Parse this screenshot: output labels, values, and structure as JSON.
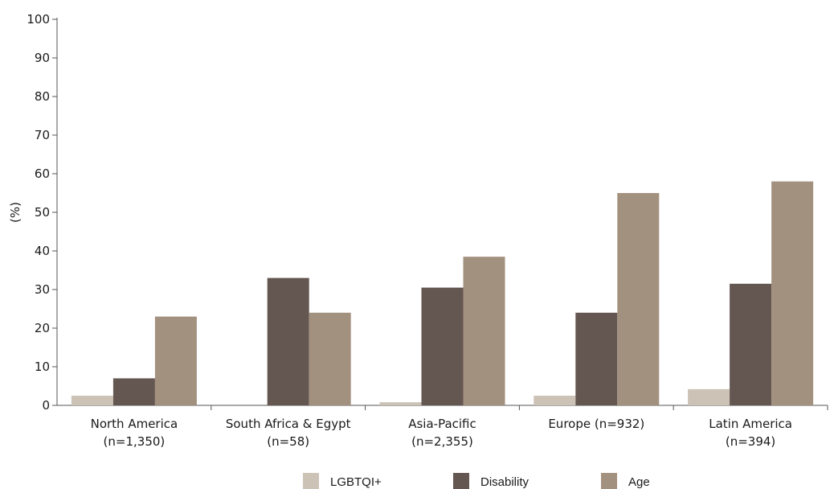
{
  "chart_data": {
    "type": "bar",
    "ylabel": "(%)",
    "ylim": [
      0,
      100
    ],
    "yticks": [
      0,
      10,
      20,
      30,
      40,
      50,
      60,
      70,
      80,
      90,
      100
    ],
    "categories": [
      [
        "North America",
        "(n=1,350)"
      ],
      [
        "South Africa & Egypt",
        "(n=58)"
      ],
      [
        "Asia-Pacific",
        "(n=2,355)"
      ],
      [
        "Europe (n=932)"
      ],
      [
        "Latin America",
        "(n=394)"
      ]
    ],
    "series": [
      {
        "name": "LGBTQI+",
        "color": "#cdc2b6",
        "values": [
          2.5,
          0,
          0.8,
          2.5,
          4.2
        ]
      },
      {
        "name": "Disability",
        "color": "#645650",
        "values": [
          7,
          33,
          30.5,
          24,
          31.5
        ]
      },
      {
        "name": "Age",
        "color": "#a3917f",
        "values": [
          23,
          24,
          38.5,
          55,
          58
        ]
      }
    ],
    "legend_position": "bottom-center",
    "grid": false
  }
}
